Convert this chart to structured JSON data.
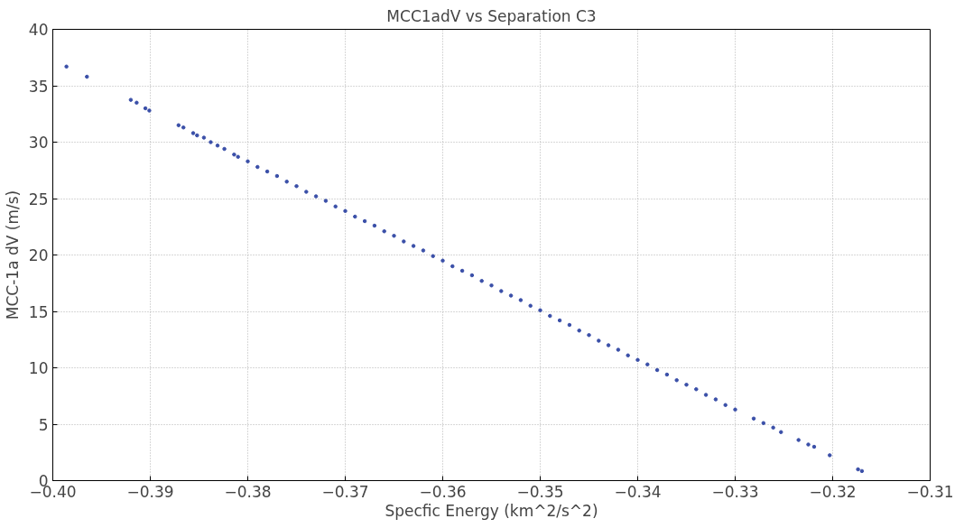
{
  "chart_data": {
    "type": "scatter",
    "title": "MCC1adV vs Separation C3",
    "xlabel": "Specfic Energy (km^2/s^2)",
    "ylabel": "MCC-1a dV (m/s)",
    "xlim": [
      -0.4,
      -0.31
    ],
    "xticks": [
      {
        "value": -0.4,
        "label": "−0.40"
      },
      {
        "value": -0.39,
        "label": "−0.39"
      },
      {
        "value": -0.38,
        "label": "−0.38"
      },
      {
        "value": -0.37,
        "label": "−0.37"
      },
      {
        "value": -0.36,
        "label": "−0.36"
      },
      {
        "value": -0.35,
        "label": "−0.35"
      },
      {
        "value": -0.34,
        "label": "−0.34"
      },
      {
        "value": -0.33,
        "label": "−0.33"
      },
      {
        "value": -0.32,
        "label": "−0.32"
      },
      {
        "value": -0.31,
        "label": "−0.31"
      }
    ],
    "ylim": [
      0,
      40
    ],
    "yticks": [
      0,
      5,
      10,
      15,
      20,
      25,
      30,
      35,
      40
    ],
    "grid": true,
    "marker": "circle",
    "series": [
      {
        "color": "#3a4fa8",
        "x": [
          -0.3986,
          -0.3965,
          -0.392,
          -0.3914,
          -0.3905,
          -0.3901,
          -0.3871,
          -0.3866,
          -0.3856,
          -0.3852,
          -0.3845,
          -0.3838,
          -0.3831,
          -0.3824,
          -0.3814,
          -0.381,
          -0.38,
          -0.379,
          -0.378,
          -0.377,
          -0.376,
          -0.375,
          -0.374,
          -0.373,
          -0.372,
          -0.371,
          -0.37,
          -0.369,
          -0.368,
          -0.367,
          -0.366,
          -0.365,
          -0.364,
          -0.363,
          -0.362,
          -0.361,
          -0.36,
          -0.359,
          -0.358,
          -0.357,
          -0.356,
          -0.355,
          -0.354,
          -0.353,
          -0.352,
          -0.351,
          -0.35,
          -0.349,
          -0.348,
          -0.347,
          -0.346,
          -0.345,
          -0.344,
          -0.343,
          -0.342,
          -0.341,
          -0.34,
          -0.339,
          -0.338,
          -0.337,
          -0.336,
          -0.335,
          -0.334,
          -0.333,
          -0.332,
          -0.331,
          -0.33,
          -0.3281,
          -0.3271,
          -0.3261,
          -0.3253,
          -0.3235,
          -0.3225,
          -0.3219,
          -0.3203,
          -0.3174,
          -0.317
        ],
        "values": [
          36.7,
          35.8,
          33.75,
          33.5,
          33.0,
          32.8,
          31.5,
          31.3,
          30.8,
          30.6,
          30.4,
          30.0,
          29.7,
          29.4,
          28.9,
          28.7,
          28.3,
          27.8,
          27.4,
          27.0,
          26.5,
          26.1,
          25.6,
          25.2,
          24.8,
          24.3,
          23.9,
          23.4,
          23.0,
          22.6,
          22.1,
          21.7,
          21.2,
          20.8,
          20.4,
          19.9,
          19.5,
          19.0,
          18.6,
          18.2,
          17.7,
          17.3,
          16.8,
          16.4,
          16.0,
          15.5,
          15.1,
          14.6,
          14.2,
          13.8,
          13.3,
          12.9,
          12.4,
          12.0,
          11.6,
          11.1,
          10.7,
          10.3,
          9.8,
          9.4,
          8.9,
          8.5,
          8.1,
          7.6,
          7.2,
          6.7,
          6.3,
          5.5,
          5.1,
          4.7,
          4.3,
          3.6,
          3.2,
          3.0,
          2.25,
          1.0,
          0.85
        ]
      }
    ]
  }
}
